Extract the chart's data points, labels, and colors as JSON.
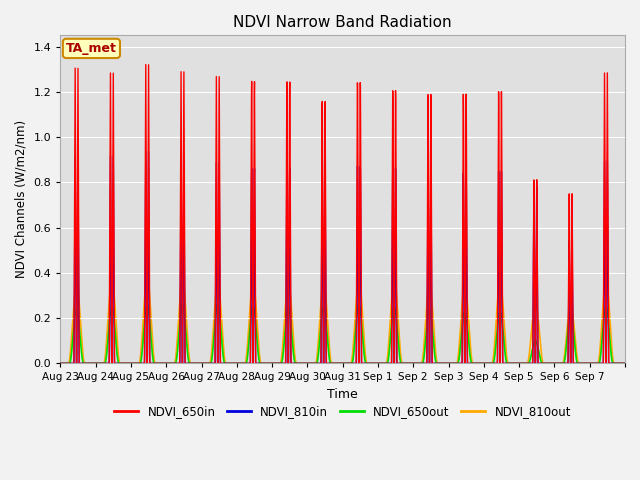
{
  "title": "NDVI Narrow Band Radiation",
  "ylabel": "NDVI Channels (W/m2/nm)",
  "xlabel": "Time",
  "ylim": [
    0,
    1.45
  ],
  "yticks": [
    0.0,
    0.2,
    0.4,
    0.6,
    0.8,
    1.0,
    1.2,
    1.4
  ],
  "x_tick_labels": [
    "Aug 23",
    "Aug 24",
    "Aug 25",
    "Aug 26",
    "Aug 27",
    "Aug 28",
    "Aug 29",
    "Aug 30",
    "Aug 31",
    "Sep 1",
    "Sep 2",
    "Sep 3",
    "Sep 4",
    "Sep 5",
    "Sep 6",
    "Sep 7"
  ],
  "annotation": "TA_met",
  "colors": {
    "NDVI_650in": "#ff0000",
    "NDVI_810in": "#0000dd",
    "NDVI_650out": "#00dd00",
    "NDVI_810out": "#ffaa00"
  },
  "peaks_650in": [
    1.31,
    1.3,
    1.35,
    1.33,
    1.32,
    1.31,
    1.32,
    1.24,
    1.33,
    1.28,
    1.25,
    1.24,
    1.24,
    0.83,
    0.76,
    1.29
  ],
  "peaks_810in": [
    0.92,
    0.93,
    0.96,
    0.93,
    0.93,
    0.91,
    0.92,
    0.92,
    0.94,
    0.92,
    0.89,
    0.88,
    0.88,
    0.8,
    0.55,
    0.9
  ],
  "peaks_650out": [
    0.24,
    0.25,
    0.26,
    0.26,
    0.26,
    0.26,
    0.25,
    0.25,
    0.26,
    0.25,
    0.24,
    0.23,
    0.23,
    0.1,
    0.22,
    0.25
  ],
  "peaks_810out": [
    0.35,
    0.37,
    0.38,
    0.37,
    0.36,
    0.36,
    0.36,
    0.36,
    0.37,
    0.37,
    0.35,
    0.35,
    0.36,
    0.27,
    0.26,
    0.37
  ],
  "fig_facecolor": "#f2f2f2",
  "ax_facecolor": "#e0e0e0",
  "grid_color": "#ffffff",
  "spine_color": "#aaaaaa"
}
